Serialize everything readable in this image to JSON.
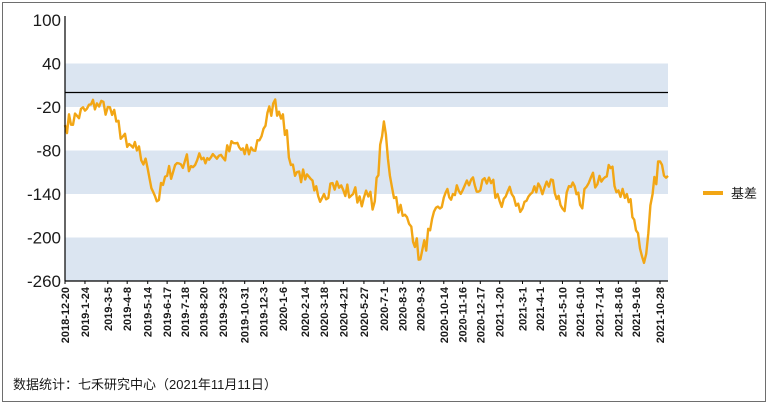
{
  "chart_data": {
    "type": "line",
    "title": "",
    "xlabel": "",
    "ylabel": "",
    "ylim": [
      -260,
      100
    ],
    "yticks": [
      100,
      40,
      -20,
      -80,
      -140,
      -200,
      -260
    ],
    "bands": [
      [
        -20,
        40
      ],
      [
        -140,
        -80
      ],
      [
        -260,
        -200
      ]
    ],
    "reference_line": 0,
    "grid": false,
    "legend": "right",
    "colors": {
      "series": "#f2a615",
      "band": "#dbe5f1",
      "axis": "#000000",
      "reference": "#000000"
    },
    "xticks": [
      "2018-12-20",
      "2019-1-24",
      "2019-3-5",
      "2019-4-8",
      "2019-5-14",
      "2019-6-17",
      "2019-7-18",
      "2019-8-20",
      "2019-9-23",
      "2019-10-31",
      "2019-12-3",
      "2020-1-6",
      "2020-2-14",
      "2020-3-18",
      "2020-4-21",
      "2020-5-27",
      "2020-7-1",
      "2020-8-3",
      "2020-9-3",
      "2020-10-14",
      "2020-11-16",
      "2020-12-17",
      "2021-1-20",
      "2021-3-1",
      "2021-4-1",
      "2021-5-10",
      "2021-6-10",
      "2021-7-14",
      "2021-8-16",
      "2021-9-16",
      "2021-10-28"
    ],
    "series": [
      {
        "name": "基差",
        "x": [
          "2018-12-20",
          "2019-1-24",
          "2019-2-14",
          "2019-3-5",
          "2019-3-20",
          "2019-4-8",
          "2019-4-25",
          "2019-5-14",
          "2019-5-30",
          "2019-6-17",
          "2019-7-1",
          "2019-7-18",
          "2019-8-5",
          "2019-8-20",
          "2019-9-5",
          "2019-9-23",
          "2019-10-15",
          "2019-10-31",
          "2019-11-15",
          "2019-12-3",
          "2019-12-20",
          "2020-1-6",
          "2020-1-20",
          "2020-2-14",
          "2020-3-1",
          "2020-3-18",
          "2020-4-2",
          "2020-4-21",
          "2020-5-8",
          "2020-5-27",
          "2020-6-15",
          "2020-7-1",
          "2020-7-15",
          "2020-8-3",
          "2020-8-18",
          "2020-9-3",
          "2020-9-20",
          "2020-10-14",
          "2020-10-30",
          "2020-11-16",
          "2020-12-1",
          "2020-12-17",
          "2021-1-5",
          "2021-1-20",
          "2021-2-10",
          "2021-3-1",
          "2021-3-15",
          "2021-4-1",
          "2021-4-20",
          "2021-5-10",
          "2021-5-25",
          "2021-6-10",
          "2021-6-25",
          "2021-7-14",
          "2021-7-30",
          "2021-8-16",
          "2021-8-31",
          "2021-9-16",
          "2021-9-30",
          "2021-10-15",
          "2021-10-28",
          "2021-11-11"
        ],
        "values": [
          -45,
          -25,
          -15,
          -20,
          -40,
          -75,
          -80,
          -105,
          -150,
          -115,
          -100,
          -95,
          -100,
          -90,
          -85,
          -90,
          -70,
          -85,
          -80,
          -50,
          -15,
          -30,
          -100,
          -120,
          -135,
          -140,
          -125,
          -135,
          -140,
          -145,
          -150,
          -40,
          -130,
          -170,
          -185,
          -230,
          -190,
          -145,
          -140,
          -135,
          -120,
          -135,
          -125,
          -150,
          -140,
          -160,
          -140,
          -130,
          -120,
          -160,
          -130,
          -155,
          -125,
          -115,
          -100,
          -135,
          -140,
          -190,
          -235,
          -140,
          -95,
          -115
        ]
      }
    ]
  },
  "source_note": "数据统计：七禾研究中心（2021年11月11日）"
}
